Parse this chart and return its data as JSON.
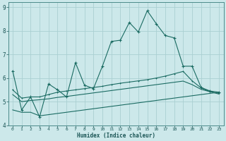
{
  "xlabel": "Humidex (Indice chaleur)",
  "bg_color": "#cce8ea",
  "grid_color": "#aacfd2",
  "line_color": "#1a6b62",
  "xlim": [
    -0.5,
    23.5
  ],
  "ylim": [
    4.0,
    9.2
  ],
  "xticks": [
    0,
    1,
    2,
    3,
    4,
    5,
    6,
    7,
    8,
    9,
    10,
    11,
    12,
    13,
    14,
    15,
    16,
    17,
    18,
    19,
    20,
    21,
    22,
    23
  ],
  "yticks": [
    4,
    5,
    6,
    7,
    8,
    9
  ],
  "line1_x": [
    0,
    1,
    2,
    3,
    4,
    5,
    6,
    7,
    8,
    9,
    10,
    11,
    12,
    13,
    14,
    15,
    16,
    17,
    18,
    19,
    20,
    21,
    22,
    23
  ],
  "line1_y": [
    6.3,
    4.65,
    5.2,
    4.35,
    5.75,
    5.5,
    5.2,
    6.65,
    5.7,
    5.55,
    6.5,
    7.55,
    7.6,
    8.35,
    7.95,
    8.85,
    8.3,
    7.8,
    7.7,
    6.5,
    6.5,
    5.6,
    5.45,
    5.4
  ],
  "line2_x": [
    0,
    1,
    2,
    3,
    4,
    5,
    6,
    7,
    8,
    9,
    10,
    11,
    12,
    13,
    14,
    15,
    16,
    17,
    18,
    19,
    20,
    21,
    22,
    23
  ],
  "line2_y": [
    5.5,
    5.15,
    5.2,
    5.2,
    5.3,
    5.4,
    5.45,
    5.5,
    5.55,
    5.6,
    5.65,
    5.72,
    5.78,
    5.83,
    5.88,
    5.93,
    6.0,
    6.08,
    6.18,
    6.28,
    5.88,
    5.58,
    5.42,
    5.35
  ],
  "line3_x": [
    0,
    1,
    2,
    3,
    4,
    5,
    6,
    7,
    8,
    9,
    10,
    11,
    12,
    13,
    14,
    15,
    16,
    17,
    18,
    19,
    20,
    21,
    22,
    23
  ],
  "line3_y": [
    5.3,
    5.0,
    5.05,
    5.08,
    5.12,
    5.18,
    5.22,
    5.27,
    5.32,
    5.37,
    5.42,
    5.47,
    5.52,
    5.57,
    5.62,
    5.67,
    5.72,
    5.77,
    5.82,
    5.87,
    5.72,
    5.52,
    5.42,
    5.32
  ],
  "line4_x": [
    0,
    1,
    2,
    3,
    4,
    5,
    6,
    7,
    8,
    9,
    10,
    11,
    12,
    13,
    14,
    15,
    16,
    17,
    18,
    19,
    20,
    21,
    22,
    23
  ],
  "line4_y": [
    4.65,
    4.55,
    4.55,
    4.4,
    4.45,
    4.5,
    4.55,
    4.6,
    4.65,
    4.7,
    4.75,
    4.8,
    4.85,
    4.9,
    4.95,
    5.0,
    5.05,
    5.1,
    5.15,
    5.2,
    5.25,
    5.3,
    5.35,
    5.4
  ]
}
